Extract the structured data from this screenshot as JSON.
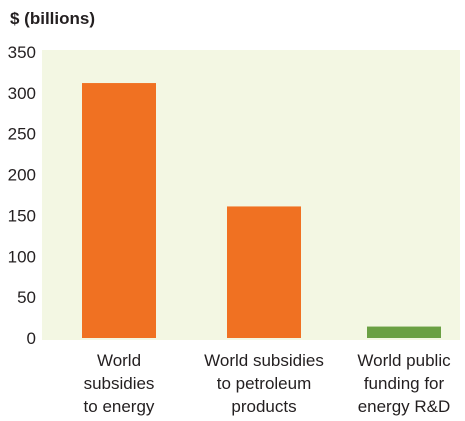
{
  "chart_data": {
    "type": "bar",
    "ylabel": "$ (billions)",
    "ylim": [
      0,
      350
    ],
    "yticks": [
      0,
      50,
      100,
      150,
      200,
      250,
      300,
      350
    ],
    "categories": [
      [
        "World",
        "subsidies",
        "to energy"
      ],
      [
        "World subsidies",
        "to petroleum",
        "products"
      ],
      [
        "World public",
        "funding for",
        "energy R&D"
      ]
    ],
    "values": [
      312,
      161,
      14
    ],
    "bar_colors": [
      "#f07122",
      "#f07122",
      "#6aa043"
    ],
    "plot_background": "#f3f7e3",
    "grid": false,
    "legend": "none"
  }
}
